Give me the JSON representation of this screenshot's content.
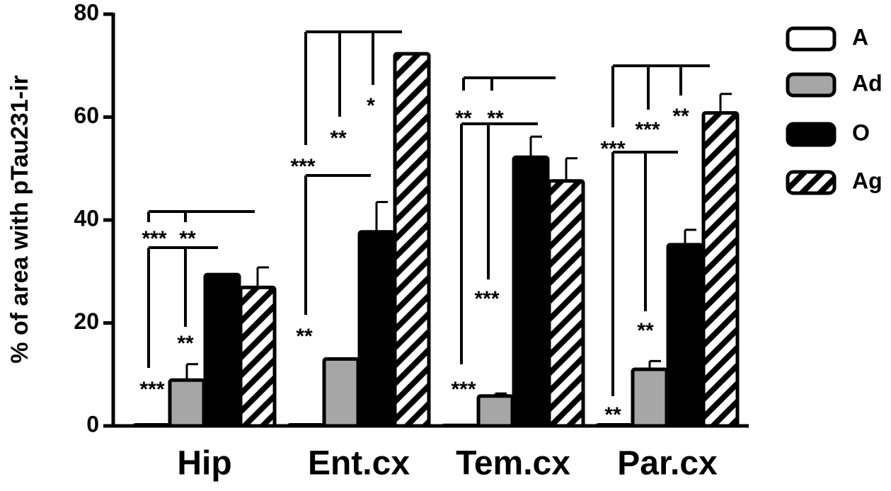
{
  "chart_data": {
    "type": "bar",
    "y_label": "% of area with pTau231-ir",
    "categories": [
      "Hip",
      "Ent.cx",
      "Tem.cx",
      "Par.cx"
    ],
    "series": [
      {
        "name": "A",
        "color": "#ffffff",
        "values": [
          0.2,
          0.2,
          0.1,
          0.2
        ],
        "errors": [
          0,
          0,
          0,
          0
        ]
      },
      {
        "name": "Ad",
        "color": "#a6a6a6",
        "values": [
          8.9,
          13,
          5.8,
          11
        ],
        "errors": [
          3.1,
          0,
          0.5,
          1.6
        ]
      },
      {
        "name": "O",
        "color": "#000000",
        "values": [
          29.4,
          37.7,
          52.2,
          35.2
        ],
        "errors": [
          0,
          5.8,
          4,
          2.9
        ]
      },
      {
        "name": "Ag",
        "color": "#000000",
        "hatch": true,
        "values": [
          26.9,
          72.3,
          47.6,
          60.8
        ],
        "errors": [
          3.9,
          0,
          4.4,
          3.7
        ]
      }
    ],
    "annotations": [
      "***",
      "**",
      "**",
      "***",
      "*",
      "**",
      "***",
      "**",
      "**",
      "**",
      "***",
      "***",
      "**",
      "***",
      "***",
      "**",
      "**"
    ],
    "ylim": [
      0,
      80
    ],
    "yticks": [
      0,
      20,
      40,
      60,
      80
    ]
  }
}
